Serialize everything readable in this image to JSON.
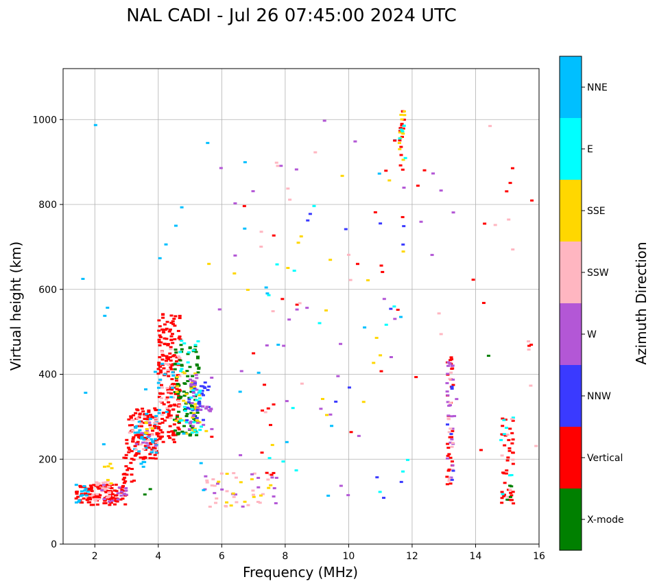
{
  "chart_data": {
    "type": "scatter",
    "title": "NAL CADI - Jul 26 07:45:00 2024 UTC",
    "xlabel": "Frequency (MHz)",
    "ylabel": "Virtual height (km)",
    "xlim": [
      1,
      16
    ],
    "ylim": [
      0,
      1120
    ],
    "xticks": [
      2,
      4,
      6,
      8,
      10,
      12,
      14,
      16
    ],
    "yticks": [
      0,
      200,
      400,
      600,
      800,
      1000
    ],
    "grid": true,
    "colorbar": {
      "label": "Azimuth Direction",
      "categories": [
        {
          "name": "X-mode",
          "color": "#008000"
        },
        {
          "name": "Vertical",
          "color": "#ff0000"
        },
        {
          "name": "NNW",
          "color": "#3a3aff"
        },
        {
          "name": "W",
          "color": "#b357d6"
        },
        {
          "name": "SSW",
          "color": "#ffb6c1"
        },
        {
          "name": "SSE",
          "color": "#ffd700"
        },
        {
          "name": "E",
          "color": "#00ffff"
        },
        {
          "name": "NNE",
          "color": "#00bfff"
        }
      ]
    },
    "clusters": [
      {
        "cat": "Vertical",
        "x": [
          1.4,
          3.0
        ],
        "y": [
          92,
          140
        ],
        "n": 120
      },
      {
        "cat": "SSW",
        "x": [
          1.9,
          2.6
        ],
        "y": [
          100,
          150
        ],
        "n": 25
      },
      {
        "cat": "NNE",
        "x": [
          1.4,
          1.8
        ],
        "y": [
          90,
          140
        ],
        "n": 12
      },
      {
        "cat": "W",
        "x": [
          2.2,
          3.0
        ],
        "y": [
          100,
          140
        ],
        "n": 15
      },
      {
        "cat": "SSE",
        "x": [
          2.3,
          2.6
        ],
        "y": [
          140,
          190
        ],
        "n": 6
      },
      {
        "cat": "Vertical",
        "x": [
          2.9,
          3.3
        ],
        "y": [
          140,
          230
        ],
        "n": 20
      },
      {
        "cat": "Vertical",
        "x": [
          3.0,
          4.0
        ],
        "y": [
          200,
          320
        ],
        "n": 110
      },
      {
        "cat": "NNE",
        "x": [
          3.2,
          4.0
        ],
        "y": [
          210,
          310
        ],
        "n": 30
      },
      {
        "cat": "SSW",
        "x": [
          3.1,
          4.0
        ],
        "y": [
          220,
          310
        ],
        "n": 20
      },
      {
        "cat": "W",
        "x": [
          3.3,
          4.0
        ],
        "y": [
          220,
          290
        ],
        "n": 10
      },
      {
        "cat": "SSE",
        "x": [
          3.6,
          4.0
        ],
        "y": [
          250,
          290
        ],
        "n": 6
      },
      {
        "cat": "Vertical",
        "x": [
          4.0,
          4.7
        ],
        "y": [
          240,
          550
        ],
        "n": 170
      },
      {
        "cat": "SSW",
        "x": [
          4.0,
          4.7
        ],
        "y": [
          280,
          480
        ],
        "n": 25
      },
      {
        "cat": "NNE",
        "x": [
          4.0,
          4.5
        ],
        "y": [
          300,
          430
        ],
        "n": 12
      },
      {
        "cat": "X-mode",
        "x": [
          4.5,
          5.3
        ],
        "y": [
          255,
          470
        ],
        "n": 90
      },
      {
        "cat": "SSE",
        "x": [
          4.5,
          5.3
        ],
        "y": [
          260,
          420
        ],
        "n": 35
      },
      {
        "cat": "NNW",
        "x": [
          4.9,
          5.6
        ],
        "y": [
          290,
          390
        ],
        "n": 35
      },
      {
        "cat": "W",
        "x": [
          4.9,
          5.7
        ],
        "y": [
          270,
          410
        ],
        "n": 30
      },
      {
        "cat": "E",
        "x": [
          4.6,
          5.4
        ],
        "y": [
          260,
          480
        ],
        "n": 30
      },
      {
        "cat": "NNE",
        "x": [
          3.4,
          3.6
        ],
        "y": [
          180,
          200
        ],
        "n": 4
      },
      {
        "cat": "X-mode",
        "x": [
          3.5,
          3.8
        ],
        "y": [
          115,
          130
        ],
        "n": 2
      },
      {
        "cat": "SSW",
        "x": [
          5.4,
          7.6
        ],
        "y": [
          88,
          170
        ],
        "n": 25
      },
      {
        "cat": "W",
        "x": [
          5.4,
          7.8
        ],
        "y": [
          88,
          170
        ],
        "n": 16
      },
      {
        "cat": "SSE",
        "x": [
          5.6,
          7.6
        ],
        "y": [
          88,
          170
        ],
        "n": 12
      },
      {
        "cat": "Vertical",
        "x": [
          7.2,
          7.8
        ],
        "y": [
          160,
          340
        ],
        "n": 8
      },
      {
        "cat": "NNE",
        "x": [
          1.5,
          12.2
        ],
        "y": [
          90,
          1000
        ],
        "n": 30
      },
      {
        "cat": "Vertical",
        "x": [
          5.5,
          16.0
        ],
        "y": [
          180,
          1000
        ],
        "n": 28
      },
      {
        "cat": "W",
        "x": [
          5.8,
          13.5
        ],
        "y": [
          100,
          1000
        ],
        "n": 35
      },
      {
        "cat": "SSW",
        "x": [
          7.0,
          16.0
        ],
        "y": [
          150,
          1020
        ],
        "n": 20
      },
      {
        "cat": "SSE",
        "x": [
          5.5,
          12.5
        ],
        "y": [
          160,
          960
        ],
        "n": 20
      },
      {
        "cat": "E",
        "x": [
          6.9,
          12.4
        ],
        "y": [
          90,
          1010
        ],
        "n": 14
      },
      {
        "cat": "NNW",
        "x": [
          8.4,
          11.8
        ],
        "y": [
          88,
          880
        ],
        "n": 12
      },
      {
        "cat": "Vertical",
        "x": [
          11.6,
          11.8
        ],
        "y": [
          880,
          1020
        ],
        "n": 14
      },
      {
        "cat": "SSE",
        "x": [
          11.6,
          11.8
        ],
        "y": [
          880,
          1020
        ],
        "n": 12
      },
      {
        "cat": "E",
        "x": [
          11.6,
          11.8
        ],
        "y": [
          880,
          1020
        ],
        "n": 6
      },
      {
        "cat": "Vertical",
        "x": [
          13.1,
          13.3
        ],
        "y": [
          140,
          440
        ],
        "n": 30
      },
      {
        "cat": "W",
        "x": [
          13.1,
          13.3
        ],
        "y": [
          140,
          440
        ],
        "n": 22
      },
      {
        "cat": "SSW",
        "x": [
          13.1,
          13.3
        ],
        "y": [
          140,
          440
        ],
        "n": 12
      },
      {
        "cat": "NNW",
        "x": [
          13.1,
          13.3
        ],
        "y": [
          140,
          440
        ],
        "n": 6
      },
      {
        "cat": "Vertical",
        "x": [
          14.8,
          15.2
        ],
        "y": [
          95,
          300
        ],
        "n": 40
      },
      {
        "cat": "E",
        "x": [
          14.8,
          15.2
        ],
        "y": [
          95,
          300
        ],
        "n": 8
      },
      {
        "cat": "SSW",
        "x": [
          14.8,
          15.2
        ],
        "y": [
          95,
          300
        ],
        "n": 6
      },
      {
        "cat": "X-mode",
        "x": [
          14.8,
          15.2
        ],
        "y": [
          90,
          150
        ],
        "n": 4
      },
      {
        "cat": "X-mode",
        "x": [
          14.3,
          14.5
        ],
        "y": [
          430,
          445
        ],
        "n": 1
      },
      {
        "cat": "Vertical",
        "x": [
          15.6,
          16.0
        ],
        "y": [
          460,
          470
        ],
        "n": 2
      },
      {
        "cat": "SSW",
        "x": [
          15.6,
          16.0
        ],
        "y": [
          330,
          480
        ],
        "n": 3
      }
    ]
  }
}
